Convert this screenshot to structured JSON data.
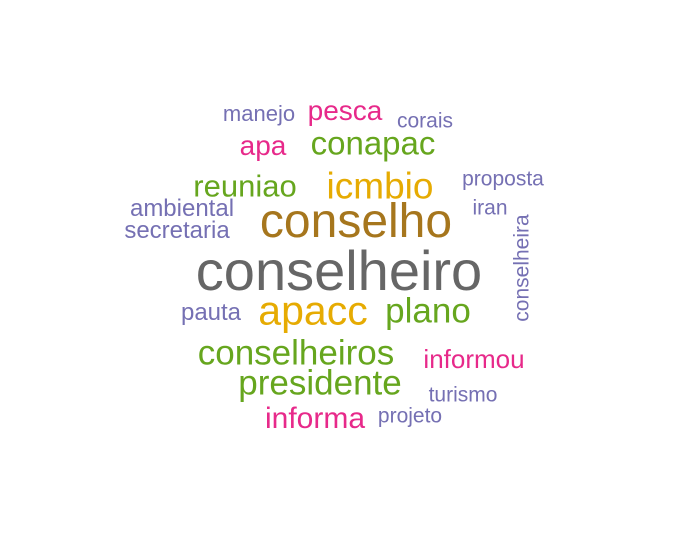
{
  "palette": {
    "gray": "#666666",
    "brown": "#a6761d",
    "gold": "#e6ab02",
    "green": "#66a61e",
    "magenta": "#e7298a",
    "purple": "#7570b3"
  },
  "words": [
    {
      "text": "conselheiro",
      "color": "gray"
    },
    {
      "text": "conselho",
      "color": "brown"
    },
    {
      "text": "apacc",
      "color": "gold"
    },
    {
      "text": "icmbio",
      "color": "gold"
    },
    {
      "text": "conselheiros",
      "color": "green"
    },
    {
      "text": "presidente",
      "color": "green"
    },
    {
      "text": "plano",
      "color": "green"
    },
    {
      "text": "conapac",
      "color": "green"
    },
    {
      "text": "reuniao",
      "color": "green"
    },
    {
      "text": "informa",
      "color": "magenta"
    },
    {
      "text": "informou",
      "color": "magenta"
    },
    {
      "text": "pesca",
      "color": "magenta"
    },
    {
      "text": "apa",
      "color": "magenta"
    },
    {
      "text": "manejo",
      "color": "purple"
    },
    {
      "text": "corais",
      "color": "purple"
    },
    {
      "text": "proposta",
      "color": "purple"
    },
    {
      "text": "iran",
      "color": "purple"
    },
    {
      "text": "ambiental",
      "color": "purple"
    },
    {
      "text": "secretaria",
      "color": "purple"
    },
    {
      "text": "pauta",
      "color": "purple"
    },
    {
      "text": "conselheira",
      "color": "purple"
    },
    {
      "text": "turismo",
      "color": "purple"
    },
    {
      "text": "projeto",
      "color": "purple"
    }
  ]
}
